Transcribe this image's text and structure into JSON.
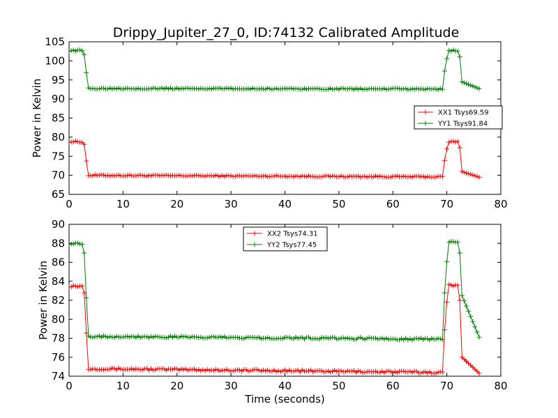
{
  "title": "Drippy_Jupiter_27_0, ID:74132 Calibrated Amplitude",
  "chart_data": [
    {
      "type": "line",
      "ylabel": "Power in Kelvin",
      "xlim": [
        0,
        80
      ],
      "ylim": [
        65,
        105
      ],
      "xticks": [
        0,
        10,
        20,
        30,
        40,
        50,
        60,
        70,
        80
      ],
      "yticks": [
        65,
        70,
        75,
        80,
        85,
        90,
        95,
        100,
        105
      ],
      "legend_position": "center-right",
      "series": [
        {
          "name": "XX1 Tsys69.59",
          "color": "#ff0000",
          "level_low": 69.6,
          "level_high": 78.8,
          "x": [
            0,
            2.5,
            3.0,
            3.4,
            69.2,
            69.7,
            70.3,
            72.3,
            72.8,
            76
          ],
          "y": [
            78.8,
            78.8,
            77.5,
            70.0,
            69.6,
            75.0,
            78.8,
            78.8,
            71.0,
            69.5
          ]
        },
        {
          "name": "YY1 Tsys91.84",
          "color": "#008000",
          "level_low": 92.7,
          "level_high": 102.7,
          "x": [
            0,
            2.5,
            3.0,
            3.4,
            69.2,
            69.7,
            70.3,
            72.3,
            72.8,
            76
          ],
          "y": [
            102.7,
            102.7,
            101.0,
            92.8,
            92.6,
            98.5,
            102.7,
            102.7,
            94.5,
            92.7
          ]
        }
      ]
    },
    {
      "type": "line",
      "xlabel": "Time (seconds)",
      "ylabel": "Power in Kelvin",
      "xlim": [
        0,
        80
      ],
      "ylim": [
        74,
        90
      ],
      "xticks": [
        0,
        10,
        20,
        30,
        40,
        50,
        60,
        70,
        80
      ],
      "yticks": [
        74,
        76,
        78,
        80,
        82,
        84,
        86,
        88,
        90
      ],
      "legend_position": "upper-center",
      "series": [
        {
          "name": "XX2 Tsys74.31",
          "color": "#ff0000",
          "level_low": 74.5,
          "level_high": 83.5,
          "x": [
            0,
            2.5,
            3.0,
            3.4,
            69.2,
            69.7,
            70.3,
            72.3,
            72.8,
            76
          ],
          "y": [
            83.5,
            83.5,
            82.3,
            74.8,
            74.4,
            80.0,
            83.6,
            83.5,
            76.0,
            74.3
          ]
        },
        {
          "name": "YY2 Tsys77.45",
          "color": "#008000",
          "level_low": 78.1,
          "level_high": 88.0,
          "x": [
            0,
            2.5,
            3.0,
            3.4,
            69.2,
            69.7,
            70.3,
            72.3,
            72.8,
            76
          ],
          "y": [
            88.0,
            88.0,
            86.3,
            78.2,
            77.9,
            84.0,
            88.1,
            88.1,
            82.5,
            78.1
          ]
        }
      ]
    }
  ]
}
